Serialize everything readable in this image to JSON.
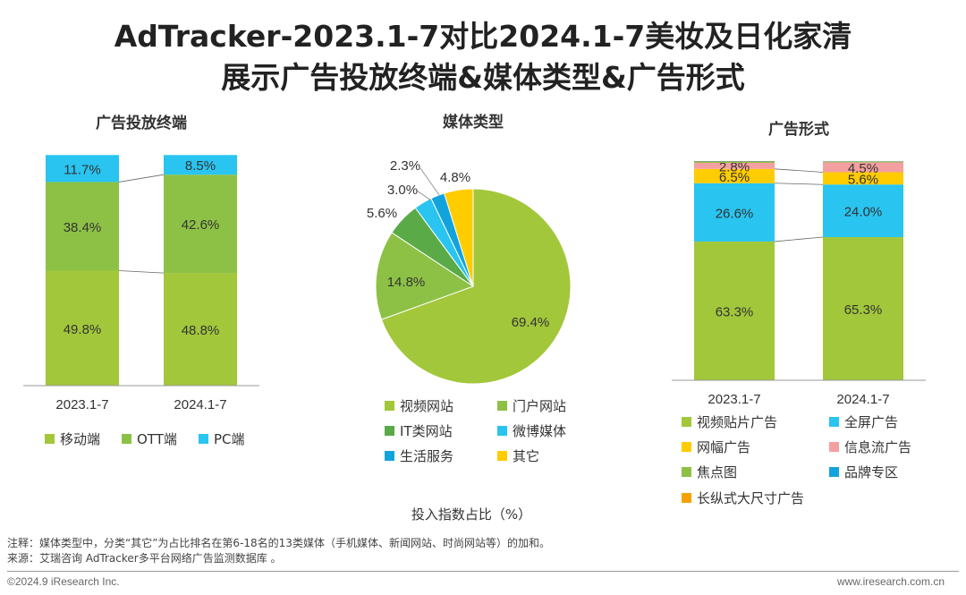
{
  "title_line1": "AdTracker-2023.1-7对比2024.1-7美妆及日化家清",
  "title_line2": "展示广告投放终端&媒体类型&广告形式",
  "chart_data": [
    {
      "type": "bar",
      "stacked": true,
      "title": "广告投放终端",
      "categories": [
        "2023.1-7",
        "2024.1-7"
      ],
      "series": [
        {
          "name": "移动端",
          "values": [
            49.8,
            48.8
          ],
          "labels": [
            "49.8%",
            "48.8%"
          ],
          "color": "#a2c73b"
        },
        {
          "name": "OTT端",
          "values": [
            38.4,
            42.6
          ],
          "labels": [
            "38.4%",
            "42.6%"
          ],
          "color": "#8dc145"
        },
        {
          "name": "PC端",
          "values": [
            11.7,
            8.5
          ],
          "labels": [
            "11.7%",
            "8.5%"
          ],
          "color": "#29c4f0"
        }
      ],
      "legend_position": "bottom"
    },
    {
      "type": "pie",
      "title": "媒体类型",
      "slices": [
        {
          "name": "视频网站",
          "value": 69.4,
          "label": "69.4%",
          "color": "#a2c73b"
        },
        {
          "name": "门户网站",
          "value": 14.8,
          "label": "14.8%",
          "color": "#8dc145"
        },
        {
          "name": "IT类网站",
          "value": 5.6,
          "label": "5.6%",
          "color": "#5aaa48"
        },
        {
          "name": "微博媒体",
          "value": 3.0,
          "label": "3.0%",
          "color": "#29c4f0"
        },
        {
          "name": "生活服务",
          "value": 2.3,
          "label": "2.3%",
          "color": "#13a3dc"
        },
        {
          "name": "其它",
          "value": 4.8,
          "label": "4.8%",
          "color": "#ffcc00"
        }
      ],
      "legend_position": "bottom"
    },
    {
      "type": "bar",
      "stacked": true,
      "title": "广告形式",
      "categories": [
        "2023.1-7",
        "2024.1-7"
      ],
      "series": [
        {
          "name": "视频贴片广告",
          "values": [
            63.3,
            65.3
          ],
          "labels": [
            "63.3%",
            "65.3%"
          ],
          "color": "#a2c73b"
        },
        {
          "name": "全屏广告",
          "values": [
            26.6,
            24.0
          ],
          "labels": [
            "26.6%",
            "24.0%"
          ],
          "color": "#29c4f0"
        },
        {
          "name": "网幅广告",
          "values": [
            6.5,
            5.6
          ],
          "labels": [
            "6.5%",
            "5.6%"
          ],
          "color": "#ffcc00"
        },
        {
          "name": "信息流广告",
          "values": [
            2.8,
            4.5
          ],
          "labels": [
            "2.8%",
            "4.5%"
          ],
          "color": "#f4a0a0"
        },
        {
          "name": "焦点图",
          "values": [
            0.4,
            0.3
          ],
          "labels": [
            "",
            ""
          ],
          "color": "#8dc145"
        },
        {
          "name": "品牌专区",
          "values": [
            0.2,
            0.2
          ],
          "labels": [
            "",
            ""
          ],
          "color": "#13a3dc"
        },
        {
          "name": "长纵式大尺寸广告",
          "values": [
            0.2,
            0.1
          ],
          "labels": [
            "",
            ""
          ],
          "color": "#f5a300"
        }
      ],
      "legend_position": "bottom"
    }
  ],
  "axis_note": "投入指数占比（%）",
  "note": "注释：媒体类型中，分类“其它”为占比排名在第6-18名的13类媒体（手机媒体、新闻网站、时尚网站等）的加和。",
  "source": "来源：艾瑞咨询 AdTracker多平台网络广告监测数据库 。",
  "copyright": "©2024.9 iResearch Inc.",
  "website": "www.iresearch.com.cn"
}
